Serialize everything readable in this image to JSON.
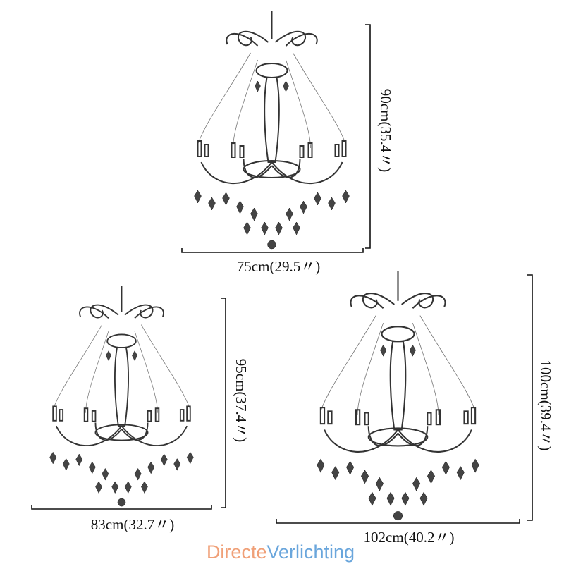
{
  "chandeliers": [
    {
      "width": "75cm(29.5〃)",
      "height": "90cm(35.4〃)"
    },
    {
      "width": "83cm(32.7〃)",
      "height": "95cm(37.4〃)"
    },
    {
      "width": "102cm(40.2〃)",
      "height": "100cm(39.4〃)"
    }
  ],
  "logo": {
    "first": "Directe",
    "second": "Verlichting"
  }
}
